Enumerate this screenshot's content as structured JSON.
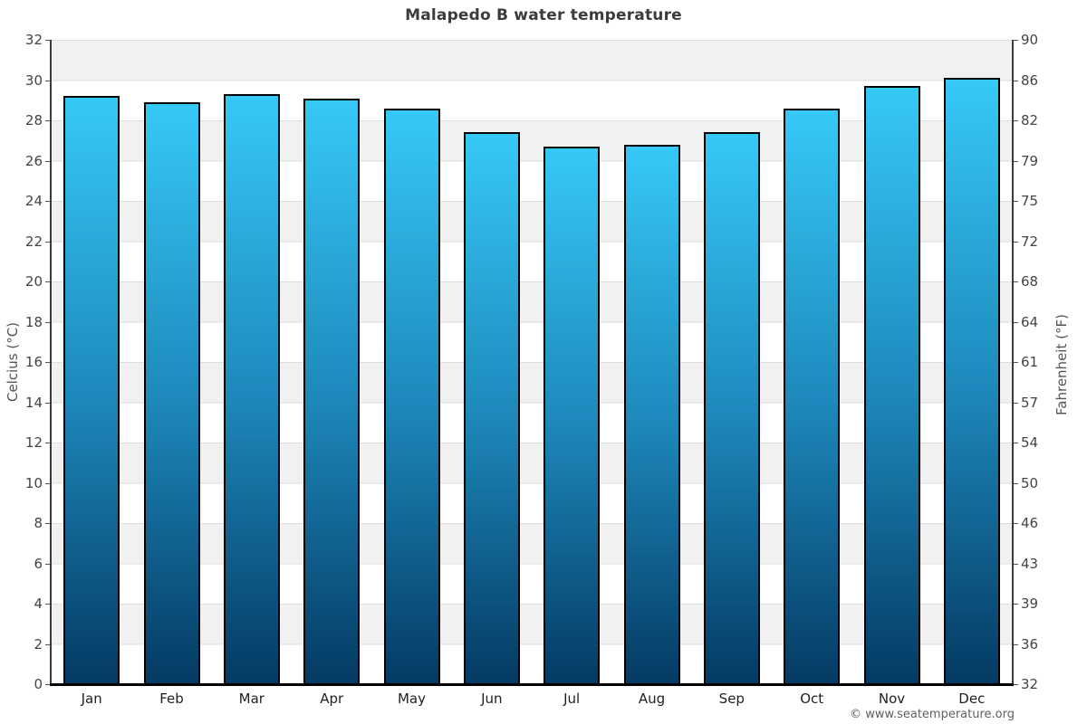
{
  "title": "Malapedo B water temperature",
  "footer": "© www.seatemperature.org",
  "axes": {
    "left_label": "Celcius (°C)",
    "right_label": "Fahrenheit (°F)",
    "celsius_ticks": [
      32,
      30,
      28,
      26,
      24,
      22,
      20,
      18,
      16,
      14,
      12,
      10,
      8,
      6,
      4,
      2,
      0
    ],
    "fahrenheit_ticks": [
      90,
      86,
      82,
      79,
      75,
      72,
      68,
      64,
      61,
      57,
      54,
      50,
      46,
      43,
      39,
      36,
      32
    ]
  },
  "chart_data": {
    "type": "bar",
    "title": "Malapedo B water temperature",
    "categories": [
      "Jan",
      "Feb",
      "Mar",
      "Apr",
      "May",
      "Jun",
      "Jul",
      "Aug",
      "Sep",
      "Oct",
      "Nov",
      "Dec"
    ],
    "values": [
      29.2,
      28.9,
      29.3,
      29.1,
      28.6,
      27.4,
      26.7,
      26.8,
      27.4,
      28.6,
      29.7,
      30.1
    ],
    "unit": "°C",
    "ylim": [
      0,
      32
    ],
    "y_tick_step": 2,
    "xlabel": "",
    "ylabel": "Celcius (°C)",
    "ylabel_right": "Fahrenheit (°F)",
    "grid": "striped-horizontal-bands",
    "legend": false
  },
  "colors": {
    "bar_top": "#36c9f6",
    "bar_mid": "#1d87ba",
    "bar_bottom": "#043a63",
    "bar_border": "#000000",
    "stripe": "#f1f1f1",
    "axis": "#3a3a3a",
    "baseline": "#000000"
  }
}
